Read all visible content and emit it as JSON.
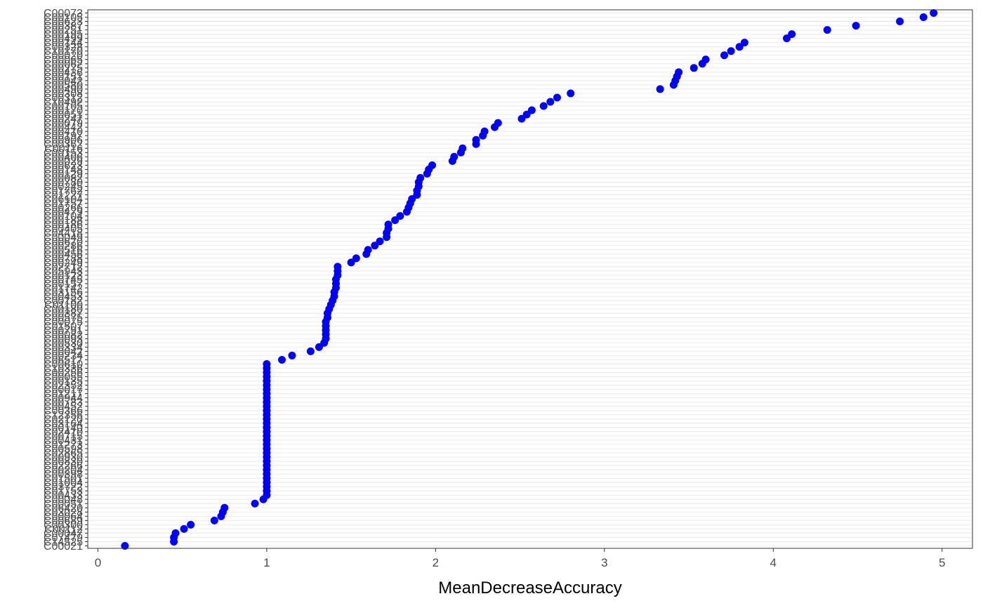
{
  "chart_data": {
    "type": "scatter",
    "title": "",
    "xlabel": "MeanDecreaseAccuracy",
    "ylabel": "",
    "xlim": [
      -0.06,
      5.18
    ],
    "x_ticks": [
      0,
      1,
      2,
      3,
      4,
      5
    ],
    "grid": "horizontal-major",
    "legend": "none",
    "point_color": "#0000ff",
    "points": [
      {
        "label": "C00021",
        "value": 0.16
      },
      {
        "label": "C14525",
        "value": 0.45
      },
      {
        "label": "C07479",
        "value": 0.45
      },
      {
        "label": "C00047",
        "value": 0.46
      },
      {
        "label": "C00112",
        "value": 0.51
      },
      {
        "label": "C00300",
        "value": 0.55
      },
      {
        "label": "C00689",
        "value": 0.69
      },
      {
        "label": "C00064",
        "value": 0.73
      },
      {
        "label": "C03028",
        "value": 0.74
      },
      {
        "label": "C06420",
        "value": 0.75
      },
      {
        "label": "C00051",
        "value": 0.93
      },
      {
        "label": "C00048",
        "value": 0.98
      },
      {
        "label": "C00433",
        "value": 1.0
      },
      {
        "label": "C01753",
        "value": 1.0
      },
      {
        "label": "C03722",
        "value": 1.0
      },
      {
        "label": "C01004",
        "value": 1.0
      },
      {
        "label": "C01501",
        "value": 1.0
      },
      {
        "label": "C00398",
        "value": 1.0
      },
      {
        "label": "C00204",
        "value": 1.0
      },
      {
        "label": "C02266",
        "value": 1.0
      },
      {
        "label": "C00830",
        "value": 1.0
      },
      {
        "label": "C00930",
        "value": 1.0
      },
      {
        "label": "C02865",
        "value": 1.0
      },
      {
        "label": "C00598",
        "value": 1.0
      },
      {
        "label": "C01273",
        "value": 1.0
      },
      {
        "label": "C00431",
        "value": 1.0
      },
      {
        "label": "C00715",
        "value": 1.0
      },
      {
        "label": "C02410",
        "value": 1.0
      },
      {
        "label": "C00140",
        "value": 1.0
      },
      {
        "label": "C03164",
        "value": 1.0
      },
      {
        "label": "C02120",
        "value": 1.0
      },
      {
        "label": "C12356",
        "value": 1.0
      },
      {
        "label": "C00366",
        "value": 1.0
      },
      {
        "label": "C00452",
        "value": 1.0
      },
      {
        "label": "C00783",
        "value": 1.0
      },
      {
        "label": "C00944",
        "value": 1.0
      },
      {
        "label": "C01217",
        "value": 1.0
      },
      {
        "label": "C00017",
        "value": 1.0
      },
      {
        "label": "C02352",
        "value": 1.0
      },
      {
        "label": "C00135",
        "value": 1.0
      },
      {
        "label": "C00055",
        "value": 1.0
      },
      {
        "label": "C00256",
        "value": 1.0
      },
      {
        "label": "C10336",
        "value": 1.0
      },
      {
        "label": "C00610",
        "value": 1.0
      },
      {
        "label": "C06517",
        "value": 1.09
      },
      {
        "label": "C00234",
        "value": 1.15
      },
      {
        "label": "C00042",
        "value": 1.26
      },
      {
        "label": "C00334",
        "value": 1.31
      },
      {
        "label": "C00530",
        "value": 1.34
      },
      {
        "label": "C00093",
        "value": 1.35
      },
      {
        "label": "C00082",
        "value": 1.35
      },
      {
        "label": "C00791",
        "value": 1.35
      },
      {
        "label": "C01507",
        "value": 1.35
      },
      {
        "label": "C00075",
        "value": 1.35
      },
      {
        "label": "C00575",
        "value": 1.36
      },
      {
        "label": "C00387",
        "value": 1.36
      },
      {
        "label": "C00180",
        "value": 1.37
      },
      {
        "label": "C01100",
        "value": 1.38
      },
      {
        "label": "C00182",
        "value": 1.39
      },
      {
        "label": "C00453",
        "value": 1.4
      },
      {
        "label": "C03156",
        "value": 1.4
      },
      {
        "label": "C01742",
        "value": 1.41
      },
      {
        "label": "C00157",
        "value": 1.41
      },
      {
        "label": "C00745",
        "value": 1.41
      },
      {
        "label": "C00123",
        "value": 1.42
      },
      {
        "label": "C05943",
        "value": 1.42
      },
      {
        "label": "C02712",
        "value": 1.42
      },
      {
        "label": "C00249",
        "value": 1.5
      },
      {
        "label": "C00788",
        "value": 1.53
      },
      {
        "label": "C00456",
        "value": 1.59
      },
      {
        "label": "C00516",
        "value": 1.6
      },
      {
        "label": "C00286",
        "value": 1.64
      },
      {
        "label": "C00670",
        "value": 1.67
      },
      {
        "label": "C00049",
        "value": 1.71
      },
      {
        "label": "C04418",
        "value": 1.71
      },
      {
        "label": "C00405",
        "value": 1.72
      },
      {
        "label": "C00186",
        "value": 1.72
      },
      {
        "label": "C00188",
        "value": 1.76
      },
      {
        "label": "C00104",
        "value": 1.79
      },
      {
        "label": "C00479",
        "value": 1.83
      },
      {
        "label": "C00266",
        "value": 1.84
      },
      {
        "label": "C01757",
        "value": 1.85
      },
      {
        "label": "C06104",
        "value": 1.86
      },
      {
        "label": "C01227",
        "value": 1.89
      },
      {
        "label": "C01762",
        "value": 1.89
      },
      {
        "label": "C00245",
        "value": 1.9
      },
      {
        "label": "C00780",
        "value": 1.9
      },
      {
        "label": "C00082",
        "value": 1.91
      },
      {
        "label": "C00129",
        "value": 1.95
      },
      {
        "label": "C00148",
        "value": 1.96
      },
      {
        "label": "C00623",
        "value": 1.98
      },
      {
        "label": "C00029",
        "value": 2.1
      },
      {
        "label": "C00406",
        "value": 2.11
      },
      {
        "label": "C00153",
        "value": 2.15
      },
      {
        "label": "C00116",
        "value": 2.16
      },
      {
        "label": "C00362",
        "value": 2.24
      },
      {
        "label": "C00906",
        "value": 2.24
      },
      {
        "label": "C00197",
        "value": 2.28
      },
      {
        "label": "C00410",
        "value": 2.29
      },
      {
        "label": "C00442",
        "value": 2.35
      },
      {
        "label": "C00079",
        "value": 2.37
      },
      {
        "label": "C00247",
        "value": 2.51
      },
      {
        "label": "C00051",
        "value": 2.54
      },
      {
        "label": "C00170",
        "value": 2.57
      },
      {
        "label": "C00105",
        "value": 2.64
      },
      {
        "label": "C10492",
        "value": 2.68
      },
      {
        "label": "C00312",
        "value": 2.72
      },
      {
        "label": "C00308",
        "value": 2.8
      },
      {
        "label": "C00490",
        "value": 3.33
      },
      {
        "label": "C00580",
        "value": 3.41
      },
      {
        "label": "C00042",
        "value": 3.42
      },
      {
        "label": "C00151",
        "value": 3.43
      },
      {
        "label": "C00436",
        "value": 3.44
      },
      {
        "label": "C00275",
        "value": 3.53
      },
      {
        "label": "C00062",
        "value": 3.58
      },
      {
        "label": "C00065",
        "value": 3.6
      },
      {
        "label": "C00020",
        "value": 3.71
      },
      {
        "label": "C10170",
        "value": 3.75
      },
      {
        "label": "C00328",
        "value": 3.8
      },
      {
        "label": "C00144",
        "value": 3.83
      },
      {
        "label": "C00499",
        "value": 4.08
      },
      {
        "label": "C00195",
        "value": 4.11
      },
      {
        "label": "C00251",
        "value": 4.32
      },
      {
        "label": "C00387",
        "value": 4.49
      },
      {
        "label": "C00623",
        "value": 4.75
      },
      {
        "label": "C00105",
        "value": 4.89
      },
      {
        "label": "C00073",
        "value": 4.95
      }
    ]
  }
}
